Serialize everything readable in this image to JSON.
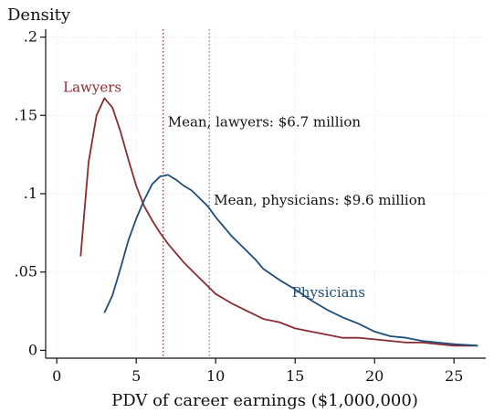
{
  "chart_data": {
    "type": "line",
    "title": "",
    "xlabel": "PDV of career earnings ($1,000,000)",
    "ylabel": "Density",
    "xlim": [
      -0.7,
      27
    ],
    "ylim": [
      -0.005,
      0.205
    ],
    "x_ticks": [
      0,
      5,
      10,
      15,
      20,
      25
    ],
    "x_tick_labels": [
      "0",
      "5",
      "10",
      "15",
      "20",
      "25"
    ],
    "y_ticks": [
      0,
      0.05,
      0.1,
      0.15,
      0.2
    ],
    "y_tick_labels": [
      "0",
      ".05",
      ".1",
      ".15",
      ".2"
    ],
    "grid": true,
    "series": [
      {
        "name": "Lawyers",
        "color": "#8b2b32",
        "label_x": 0.4,
        "label_y": 0.165,
        "points": [
          [
            1.5,
            0.06
          ],
          [
            2.0,
            0.12
          ],
          [
            2.5,
            0.15
          ],
          [
            3.0,
            0.161
          ],
          [
            3.5,
            0.155
          ],
          [
            4.0,
            0.14
          ],
          [
            4.5,
            0.122
          ],
          [
            5.0,
            0.105
          ],
          [
            5.5,
            0.092
          ],
          [
            6.0,
            0.083
          ],
          [
            6.5,
            0.075
          ],
          [
            7.0,
            0.068
          ],
          [
            7.5,
            0.062
          ],
          [
            8.0,
            0.056
          ],
          [
            9.0,
            0.046
          ],
          [
            10.0,
            0.036
          ],
          [
            11.0,
            0.03
          ],
          [
            12.0,
            0.025
          ],
          [
            13.0,
            0.02
          ],
          [
            14.0,
            0.018
          ],
          [
            15.0,
            0.014
          ],
          [
            16.0,
            0.012
          ],
          [
            17.0,
            0.01
          ],
          [
            18.0,
            0.008
          ],
          [
            19.0,
            0.008
          ],
          [
            20.0,
            0.007
          ],
          [
            21.0,
            0.006
          ],
          [
            22.0,
            0.005
          ],
          [
            23.0,
            0.005
          ],
          [
            24.0,
            0.004
          ],
          [
            25.0,
            0.003
          ],
          [
            26.5,
            0.003
          ]
        ]
      },
      {
        "name": "Physicians",
        "color": "#1f4e79",
        "label_x": 14.8,
        "label_y": 0.034,
        "points": [
          [
            3.0,
            0.024
          ],
          [
            3.5,
            0.035
          ],
          [
            4.0,
            0.052
          ],
          [
            4.5,
            0.07
          ],
          [
            5.0,
            0.084
          ],
          [
            5.5,
            0.096
          ],
          [
            6.0,
            0.106
          ],
          [
            6.5,
            0.111
          ],
          [
            7.0,
            0.112
          ],
          [
            7.5,
            0.109
          ],
          [
            8.0,
            0.105
          ],
          [
            8.5,
            0.102
          ],
          [
            9.0,
            0.097
          ],
          [
            9.5,
            0.092
          ],
          [
            10.0,
            0.085
          ],
          [
            10.5,
            0.079
          ],
          [
            11.0,
            0.073
          ],
          [
            11.5,
            0.068
          ],
          [
            12.0,
            0.063
          ],
          [
            12.5,
            0.058
          ],
          [
            13.0,
            0.052
          ],
          [
            14.0,
            0.045
          ],
          [
            15.0,
            0.039
          ],
          [
            16.0,
            0.032
          ],
          [
            17.0,
            0.026
          ],
          [
            18.0,
            0.021
          ],
          [
            19.0,
            0.017
          ],
          [
            20.0,
            0.012
          ],
          [
            21.0,
            0.009
          ],
          [
            22.0,
            0.008
          ],
          [
            23.0,
            0.006
          ],
          [
            24.0,
            0.005
          ],
          [
            25.0,
            0.004
          ],
          [
            26.5,
            0.003
          ]
        ]
      }
    ],
    "vlines": [
      {
        "x": 6.7,
        "color": "#8b2b32",
        "label": "Mean, lawyers: $6.7 million",
        "label_y": 0.143
      },
      {
        "x": 9.6,
        "color": "#777777",
        "label": "Mean, physicians: $9.6 million",
        "label_y": 0.093
      }
    ]
  }
}
